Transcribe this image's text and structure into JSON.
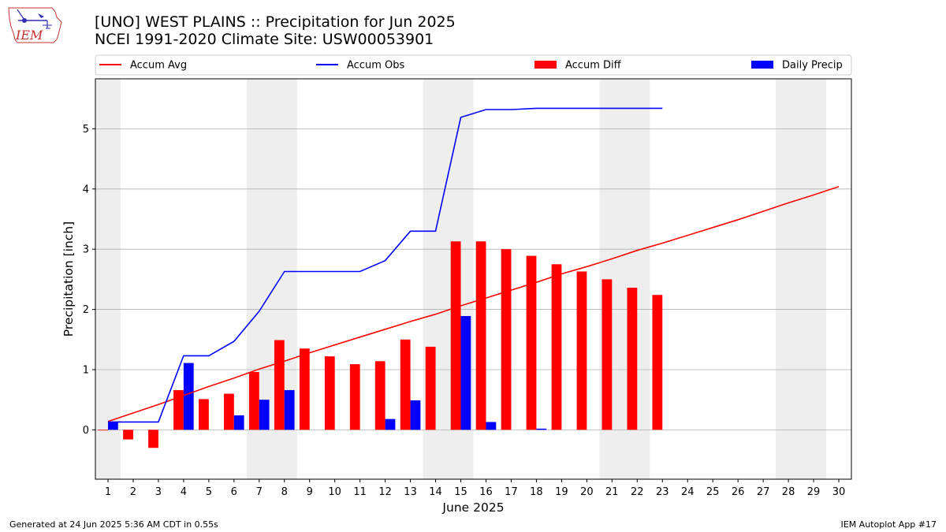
{
  "logo_text": "IEM",
  "title_line1": "[UNO] WEST PLAINS :: Precipitation for Jun 2025",
  "title_line2": "NCEI 1991-2020 Climate Site: USW00053901",
  "footer_left": "Generated at 24 Jun 2025 5:36 AM CDT in 0.55s",
  "footer_right": "IEM Autoplot App #17",
  "colors": {
    "accum_avg": "#ff0000",
    "accum_obs": "#0000ff",
    "accum_diff": "#ff0000",
    "daily_precip": "#0000ff",
    "weekend_shade": "#eeeeee",
    "grid": "#b0b0b0"
  },
  "chart_data": {
    "type": "bar",
    "xlabel": "June 2025",
    "ylabel": "Precipitation [inch]",
    "xlim": [
      0.5,
      30.5
    ],
    "ylim": [
      -0.82,
      5.83
    ],
    "yticks": [
      0,
      1,
      2,
      3,
      4,
      5
    ],
    "grid": "y",
    "legend_placement": "top",
    "legend": [
      "Accum Avg",
      "Accum Obs",
      "Accum Diff",
      "Daily Precip"
    ],
    "shaded_days": [
      [
        0.5,
        1.5
      ],
      [
        6.5,
        8.5
      ],
      [
        13.5,
        15.5
      ],
      [
        20.5,
        22.5
      ],
      [
        27.5,
        29.5
      ]
    ],
    "days": [
      1,
      2,
      3,
      4,
      5,
      6,
      7,
      8,
      9,
      10,
      11,
      12,
      13,
      14,
      15,
      16,
      17,
      18,
      19,
      20,
      21,
      22,
      23,
      24,
      25,
      26,
      27,
      28,
      29,
      30
    ],
    "series": [
      {
        "name": "Accum Avg",
        "kind": "line",
        "x": [
          1,
          2,
          3,
          4,
          5,
          6,
          7,
          8,
          9,
          10,
          11,
          12,
          13,
          14,
          15,
          16,
          17,
          18,
          19,
          20,
          21,
          22,
          23,
          24,
          25,
          26,
          27,
          28,
          29,
          30
        ],
        "values": [
          0.14,
          0.28,
          0.42,
          0.57,
          0.72,
          0.86,
          1.01,
          1.14,
          1.28,
          1.41,
          1.54,
          1.67,
          1.8,
          1.92,
          2.06,
          2.19,
          2.32,
          2.45,
          2.59,
          2.71,
          2.84,
          2.98,
          3.1,
          3.23,
          3.36,
          3.49,
          3.63,
          3.77,
          3.9,
          4.04
        ]
      },
      {
        "name": "Accum Obs",
        "kind": "line",
        "x": [
          1,
          2,
          3,
          4,
          5,
          6,
          7,
          8,
          9,
          10,
          11,
          12,
          13,
          14,
          15,
          16,
          17,
          18,
          19,
          20,
          21,
          22,
          23
        ],
        "values": [
          0.13,
          0.13,
          0.13,
          1.23,
          1.23,
          1.47,
          1.97,
          2.63,
          2.63,
          2.63,
          2.63,
          2.81,
          3.3,
          3.3,
          5.19,
          5.32,
          5.32,
          5.34,
          5.34,
          5.34,
          5.34,
          5.34,
          5.34
        ]
      },
      {
        "name": "Accum Diff",
        "kind": "bar",
        "x": [
          1,
          2,
          3,
          4,
          5,
          6,
          7,
          8,
          9,
          10,
          11,
          12,
          13,
          14,
          15,
          16,
          17,
          18,
          19,
          20,
          21,
          22,
          23
        ],
        "values": [
          -0.01,
          -0.16,
          -0.3,
          0.66,
          0.51,
          0.6,
          0.96,
          1.49,
          1.35,
          1.22,
          1.09,
          1.14,
          1.5,
          1.38,
          3.13,
          3.13,
          3.0,
          2.89,
          2.75,
          2.63,
          2.5,
          2.36,
          2.24
        ]
      },
      {
        "name": "Daily Precip",
        "kind": "bar",
        "x": [
          1,
          2,
          3,
          4,
          5,
          6,
          7,
          8,
          9,
          10,
          11,
          12,
          13,
          14,
          15,
          16,
          17,
          18,
          19,
          20,
          21,
          22,
          23
        ],
        "values": [
          0.13,
          0,
          0,
          1.11,
          0,
          0.24,
          0.5,
          0.66,
          0,
          0,
          0,
          0.18,
          0.49,
          0,
          1.89,
          0.13,
          0,
          0.02,
          0,
          0,
          0,
          0,
          0
        ]
      }
    ]
  }
}
